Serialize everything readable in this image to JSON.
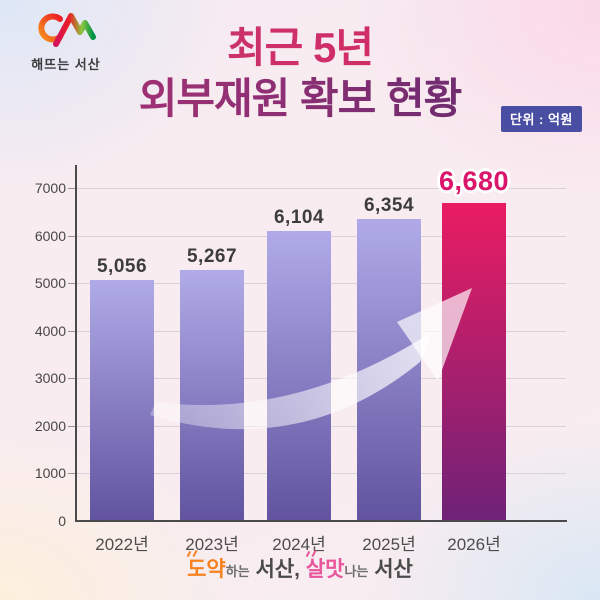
{
  "logo": {
    "text": "해뜨는 서산"
  },
  "title": {
    "line1": "최근 5년",
    "line2": "외부재원 확보 현황",
    "unit_badge": "단위 : 억원"
  },
  "chart_data": {
    "type": "bar",
    "title": "최근 5년 외부재원 확보 현황",
    "unit": "억원",
    "categories": [
      "2022년",
      "2023년",
      "2024년",
      "2025년",
      "2026년"
    ],
    "values": [
      5056,
      5267,
      6104,
      6354,
      6680
    ],
    "value_labels": [
      "5,056",
      "5,267",
      "6,104",
      "6,354",
      "6,680"
    ],
    "highlight_index": 4,
    "yticks": [
      0,
      1000,
      2000,
      3000,
      4000,
      5000,
      6000,
      7000
    ],
    "ylim": [
      0,
      7000
    ],
    "grid": true,
    "legend": "none",
    "colors": {
      "bar_top": "#b0abe8",
      "bar_bottom": "#61539f",
      "highlight_top": "#ea1c62",
      "highlight_bottom": "#6e2277",
      "value_label": "#3c3c3c",
      "highlight_label": "#d9156c",
      "axis": "#4a4a4a",
      "gridline": "#d9d2da",
      "unit_badge_bg": "#4a4ea3"
    }
  },
  "footer": {
    "segments": [
      {
        "text": "도약",
        "style": "accent-orange"
      },
      {
        "text": "하는",
        "style": "small"
      },
      {
        "text": " 서산, ",
        "style": "dark"
      },
      {
        "text": "살맛",
        "style": "accent-pink"
      },
      {
        "text": "나는",
        "style": "small"
      },
      {
        "text": " 서산",
        "style": "dark"
      }
    ]
  }
}
